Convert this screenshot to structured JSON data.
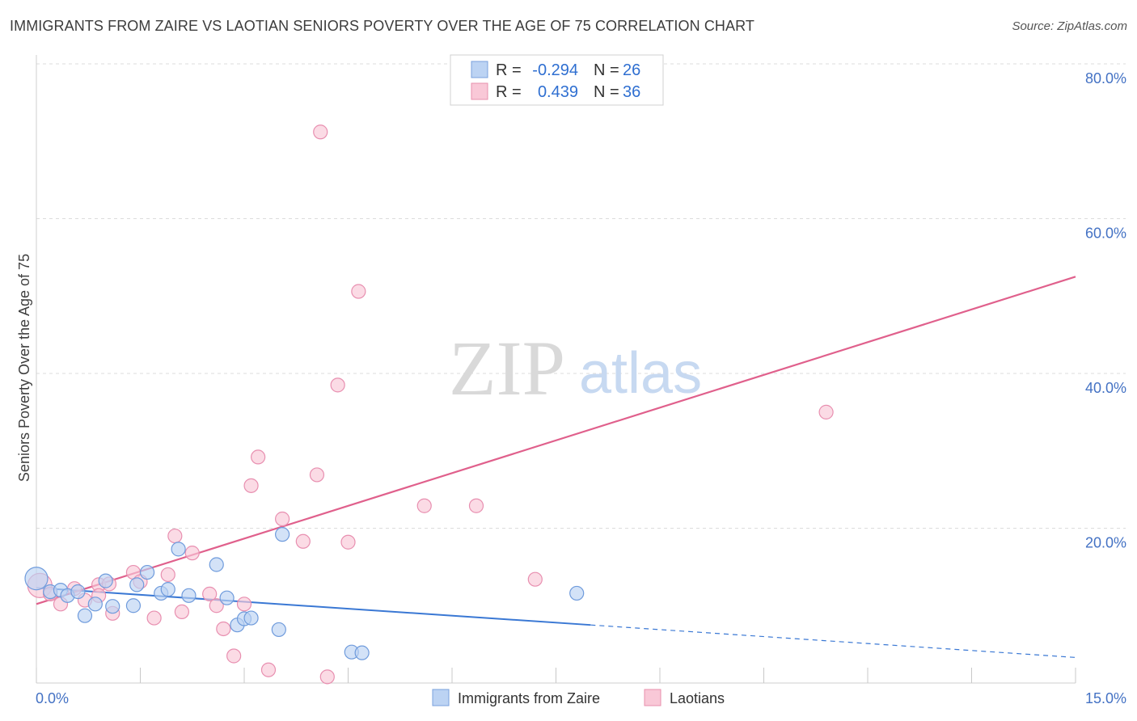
{
  "title": "IMMIGRANTS FROM ZAIRE VS LAOTIAN SENIORS POVERTY OVER THE AGE OF 75 CORRELATION CHART",
  "source": "Source: ZipAtlas.com",
  "watermark": {
    "zip": "ZIP",
    "atlas": "atlas"
  },
  "chart_data": {
    "type": "scatter",
    "title": "IMMIGRANTS FROM ZAIRE VS LAOTIAN SENIORS POVERTY OVER THE AGE OF 75 CORRELATION CHART",
    "xlabel": "",
    "ylabel": "Seniors Poverty Over the Age of 75",
    "xlim": [
      0,
      15
    ],
    "ylim": [
      0,
      80
    ],
    "x_tick_labels": [
      "0.0%",
      "15.0%"
    ],
    "y_ticks": [
      20,
      40,
      60,
      80
    ],
    "y_tick_labels": [
      "20.0%",
      "40.0%",
      "60.0%",
      "80.0%"
    ],
    "grid": true,
    "legend_placement": "top-center",
    "stats": [
      {
        "r_label": "R =",
        "r_value": "-0.294",
        "n_label": "N =",
        "n_value": "26"
      },
      {
        "r_label": "R =",
        "r_value": "0.439",
        "n_label": "N =",
        "n_value": "36"
      }
    ],
    "series": [
      {
        "name": "Immigrants from Zaire",
        "color": "#8fb4e8",
        "line_color": "#3a78d4",
        "trend": {
          "x0": 0,
          "y0": 12.3,
          "x1": 8.0,
          "y1": 7.5,
          "dash_x1": 15,
          "dash_y1": 3.3
        },
        "points": [
          {
            "x": 0.0,
            "y": 13.5,
            "size": 28
          },
          {
            "x": 0.2,
            "y": 11.8
          },
          {
            "x": 0.35,
            "y": 12.0
          },
          {
            "x": 0.45,
            "y": 11.3
          },
          {
            "x": 0.6,
            "y": 11.8
          },
          {
            "x": 0.7,
            "y": 8.7
          },
          {
            "x": 0.85,
            "y": 10.2
          },
          {
            "x": 1.0,
            "y": 13.2
          },
          {
            "x": 1.1,
            "y": 9.9
          },
          {
            "x": 1.4,
            "y": 10.0
          },
          {
            "x": 1.45,
            "y": 12.7
          },
          {
            "x": 1.6,
            "y": 14.3
          },
          {
            "x": 1.8,
            "y": 11.6
          },
          {
            "x": 1.9,
            "y": 12.1
          },
          {
            "x": 2.05,
            "y": 17.3
          },
          {
            "x": 2.2,
            "y": 11.3
          },
          {
            "x": 2.6,
            "y": 15.3
          },
          {
            "x": 2.75,
            "y": 11.0
          },
          {
            "x": 2.9,
            "y": 7.5
          },
          {
            "x": 3.0,
            "y": 8.3
          },
          {
            "x": 3.1,
            "y": 8.4
          },
          {
            "x": 3.5,
            "y": 6.9
          },
          {
            "x": 3.55,
            "y": 19.2
          },
          {
            "x": 4.55,
            "y": 4.0
          },
          {
            "x": 4.7,
            "y": 3.9
          },
          {
            "x": 7.8,
            "y": 11.6
          }
        ]
      },
      {
        "name": "Laotians",
        "color": "#f4a6c0",
        "line_color": "#e0608c",
        "trend": {
          "x0": 0,
          "y0": 10.2,
          "x1": 15,
          "y1": 52.5
        },
        "points": [
          {
            "x": 0.05,
            "y": 12.6,
            "size": 30
          },
          {
            "x": 0.2,
            "y": 11.5
          },
          {
            "x": 0.35,
            "y": 10.2
          },
          {
            "x": 0.55,
            "y": 12.2
          },
          {
            "x": 0.7,
            "y": 10.7
          },
          {
            "x": 0.9,
            "y": 12.7
          },
          {
            "x": 1.05,
            "y": 12.8
          },
          {
            "x": 1.1,
            "y": 9.0
          },
          {
            "x": 1.4,
            "y": 14.3
          },
          {
            "x": 1.5,
            "y": 13.1
          },
          {
            "x": 1.7,
            "y": 8.4
          },
          {
            "x": 1.9,
            "y": 14.0
          },
          {
            "x": 2.0,
            "y": 19.0
          },
          {
            "x": 2.1,
            "y": 9.2
          },
          {
            "x": 2.25,
            "y": 16.8
          },
          {
            "x": 2.5,
            "y": 11.5
          },
          {
            "x": 2.6,
            "y": 10.0
          },
          {
            "x": 2.7,
            "y": 7.0
          },
          {
            "x": 2.85,
            "y": 3.5
          },
          {
            "x": 3.0,
            "y": 10.2
          },
          {
            "x": 3.1,
            "y": 25.5
          },
          {
            "x": 3.2,
            "y": 29.2
          },
          {
            "x": 3.35,
            "y": 1.7
          },
          {
            "x": 3.55,
            "y": 21.2
          },
          {
            "x": 3.85,
            "y": 18.3
          },
          {
            "x": 4.05,
            "y": 26.9
          },
          {
            "x": 4.1,
            "y": 71.2
          },
          {
            "x": 4.2,
            "y": 0.8
          },
          {
            "x": 4.35,
            "y": 38.5
          },
          {
            "x": 4.5,
            "y": 18.2
          },
          {
            "x": 4.65,
            "y": 50.6
          },
          {
            "x": 5.6,
            "y": 22.9
          },
          {
            "x": 6.35,
            "y": 22.9
          },
          {
            "x": 7.2,
            "y": 13.4
          },
          {
            "x": 11.4,
            "y": 35.0
          },
          {
            "x": 0.9,
            "y": 11.3
          }
        ]
      }
    ]
  }
}
